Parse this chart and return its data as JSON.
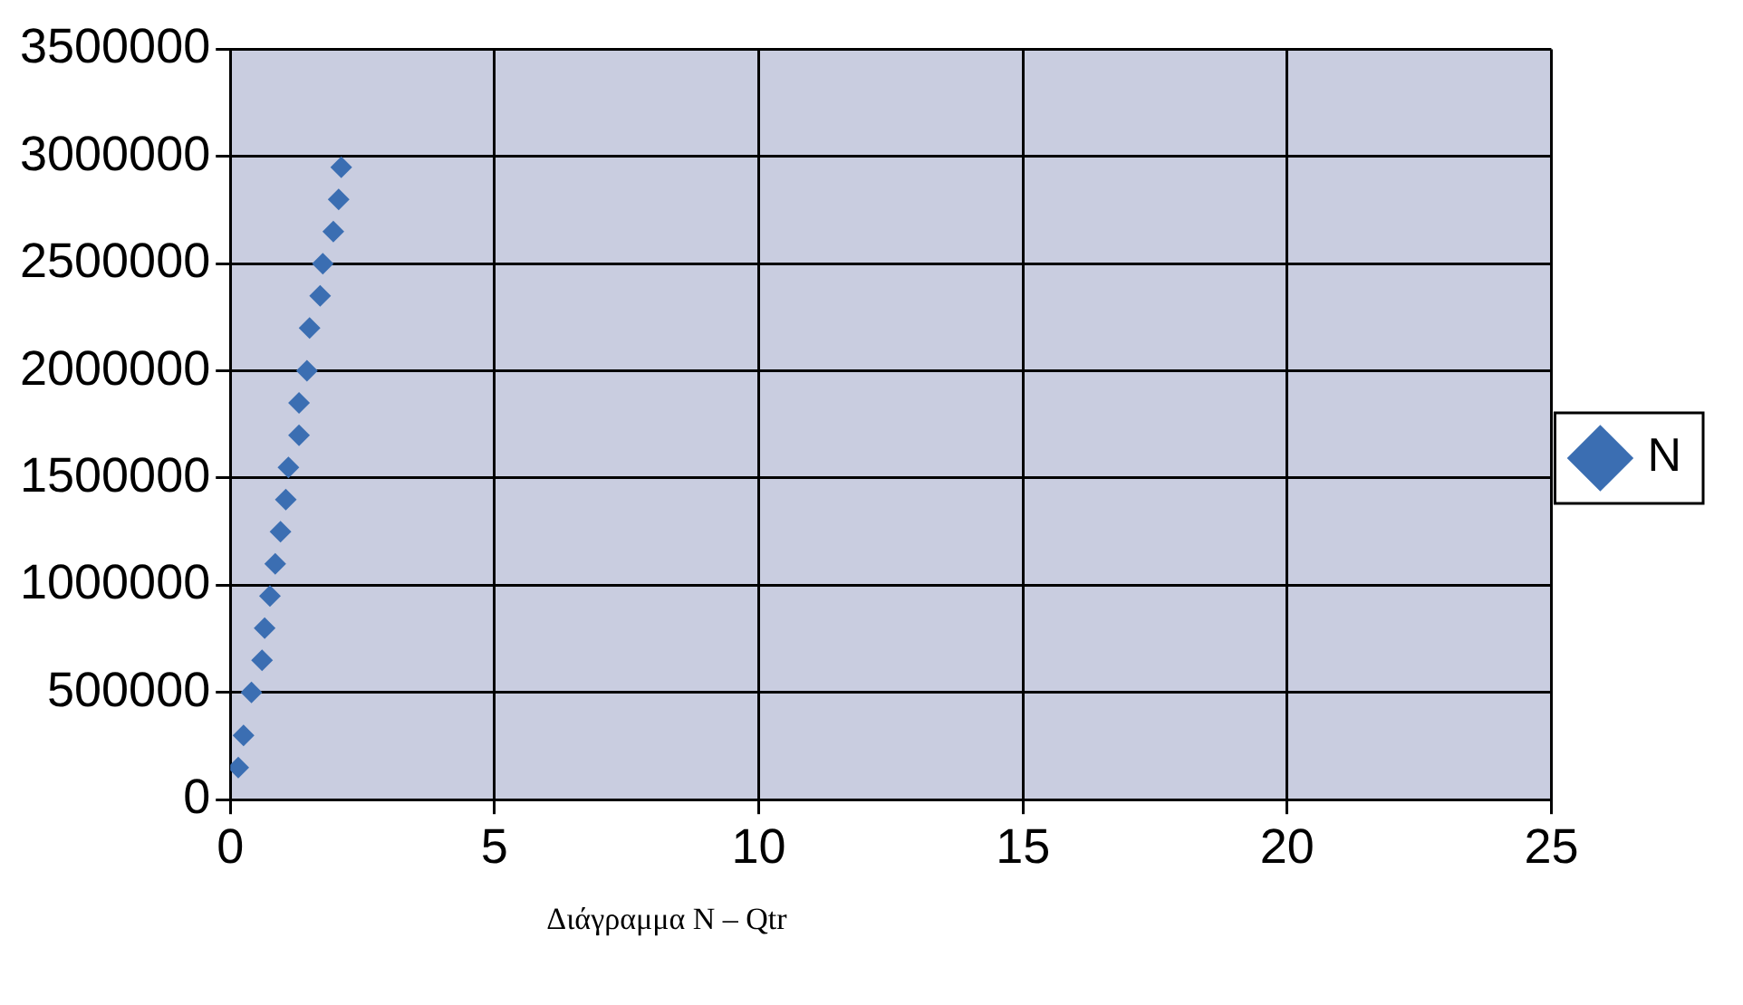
{
  "chart_data": {
    "type": "scatter",
    "annotations": [
      "Διάγραμμα N – Qtr"
    ],
    "series": [
      {
        "name": "N",
        "color": "#3b6eb2",
        "x": [
          0.15,
          0.25,
          0.4,
          0.6,
          0.65,
          0.75,
          0.85,
          0.95,
          1.05,
          1.1,
          1.3,
          1.3,
          1.45,
          1.5,
          1.7,
          1.75,
          1.95,
          2.05,
          2.1
        ],
        "values": [
          150000,
          300000,
          500000,
          650000,
          800000,
          950000,
          1100000,
          1250000,
          1400000,
          1550000,
          1700000,
          1850000,
          2000000,
          2200000,
          2350000,
          2500000,
          2650000,
          2800000,
          2950000
        ]
      }
    ],
    "xlim": [
      0,
      25
    ],
    "xticks": [
      0,
      5,
      10,
      15,
      20,
      25
    ],
    "ylim": [
      0,
      3500000
    ],
    "yticks": [
      0,
      500000,
      1000000,
      1500000,
      2000000,
      2500000,
      3000000,
      3500000
    ],
    "grid": true,
    "legend": "right",
    "marker": "diamond"
  }
}
